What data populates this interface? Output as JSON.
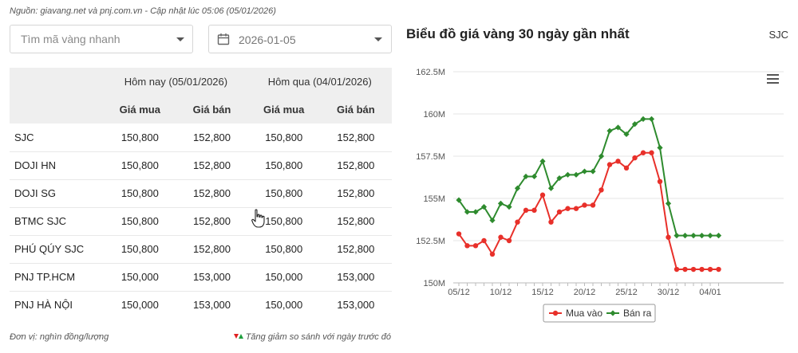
{
  "source": "Nguồn: giavang.net và pnj.com.vn - Cập nhật lúc 05:06 (05/01/2026)",
  "search": {
    "placeholder": "Tìm mã vàng nhanh"
  },
  "date_picker": {
    "value": "2026-01-05"
  },
  "table": {
    "group_today": "Hôm nay (05/01/2026)",
    "group_yesterday": "Hôm qua (04/01/2026)",
    "col_buy": "Giá mua",
    "col_sell": "Giá bán",
    "rows": [
      {
        "name": "SJC",
        "today_buy": "150,800",
        "today_sell": "152,800",
        "yest_buy": "150,800",
        "yest_sell": "152,800"
      },
      {
        "name": "DOJI HN",
        "today_buy": "150,800",
        "today_sell": "152,800",
        "yest_buy": "150,800",
        "yest_sell": "152,800"
      },
      {
        "name": "DOJI SG",
        "today_buy": "150,800",
        "today_sell": "152,800",
        "yest_buy": "150,800",
        "yest_sell": "152,800"
      },
      {
        "name": "BTMC SJC",
        "today_buy": "150,800",
        "today_sell": "152,800",
        "yest_buy": "150,800",
        "yest_sell": "152,800"
      },
      {
        "name": "PHÚ QÚY SJC",
        "today_buy": "150,800",
        "today_sell": "152,800",
        "yest_buy": "150,800",
        "yest_sell": "152,800"
      },
      {
        "name": "PNJ TP.HCM",
        "today_buy": "150,000",
        "today_sell": "153,000",
        "yest_buy": "150,000",
        "yest_sell": "153,000"
      },
      {
        "name": "PNJ HÀ NỘI",
        "today_buy": "150,000",
        "today_sell": "153,000",
        "yest_buy": "150,000",
        "yest_sell": "153,000"
      }
    ]
  },
  "unit_note": "Đơn vị: nghìn đồng/lượng",
  "change_note": "Tăng giảm so sánh với ngày trước đó",
  "colors": {
    "buy": "#e8302a",
    "sell": "#2e8b2e",
    "grid": "#e6e6e6"
  },
  "chart_data": {
    "type": "line",
    "title": "Biểu đồ giá vàng 30 ngày gần nhất",
    "brand": "SJC",
    "ylim": [
      150,
      162.5
    ],
    "y_ticks": [
      "150M",
      "152.5M",
      "155M",
      "157.5M",
      "160M",
      "162.5M"
    ],
    "x_ticks": [
      "05/12",
      "10/12",
      "15/12",
      "20/12",
      "25/12",
      "30/12",
      "04/01"
    ],
    "x": [
      "05/12",
      "06/12",
      "07/12",
      "08/12",
      "09/12",
      "10/12",
      "11/12",
      "12/12",
      "13/12",
      "14/12",
      "15/12",
      "16/12",
      "17/12",
      "18/12",
      "19/12",
      "20/12",
      "21/12",
      "22/12",
      "23/12",
      "24/12",
      "25/12",
      "26/12",
      "27/12",
      "28/12",
      "29/12",
      "30/12",
      "31/12",
      "01/01",
      "02/01",
      "03/01",
      "04/01",
      "05/01"
    ],
    "series": [
      {
        "name": "Mua vào",
        "values": [
          152.9,
          152.2,
          152.2,
          152.5,
          151.7,
          152.7,
          152.5,
          153.6,
          154.3,
          154.3,
          155.2,
          153.6,
          154.2,
          154.4,
          154.4,
          154.6,
          154.6,
          155.5,
          157.0,
          157.2,
          156.8,
          157.4,
          157.7,
          157.7,
          156.0,
          152.7,
          150.8,
          150.8,
          150.8,
          150.8,
          150.8,
          150.8
        ]
      },
      {
        "name": "Bán ra",
        "values": [
          154.9,
          154.2,
          154.2,
          154.5,
          153.7,
          154.7,
          154.5,
          155.6,
          156.3,
          156.3,
          157.2,
          155.6,
          156.2,
          156.4,
          156.4,
          156.6,
          156.6,
          157.5,
          159.0,
          159.2,
          158.8,
          159.4,
          159.7,
          159.7,
          158.0,
          154.7,
          152.8,
          152.8,
          152.8,
          152.8,
          152.8,
          152.8
        ]
      }
    ],
    "legend_position": "bottom-center"
  }
}
